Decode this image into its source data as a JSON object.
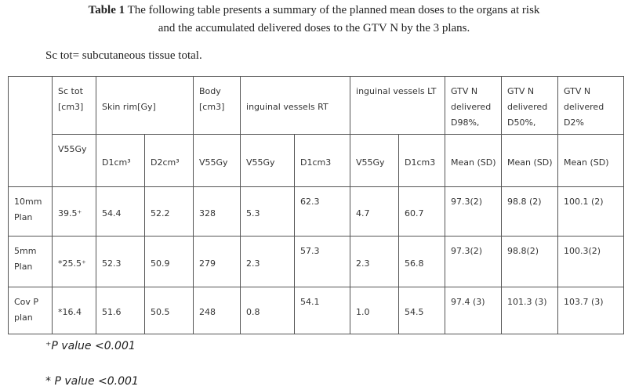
{
  "title": {
    "label": "Table 1",
    "lines": [
      "The following table presents a summary  of the planned mean doses to the organs at risk",
      "and the accumulated delivered doses to the GTV N by the 3 plans."
    ]
  },
  "note": "Sc tot= subcutaneous tissue total.",
  "table": {
    "group_headers": [
      "Sc tot [cm3]",
      "Skin rim[Gy]",
      "Body [cm3]",
      "inguinal vessels RT",
      "inguinal vessels LT",
      "GTV N delivered D98%,",
      "GTV N delivered D50%,",
      "GTV N delivered D2%"
    ],
    "sub_headers": [
      "V55Gy",
      "D1cm³",
      "D2cm³",
      "V55Gy",
      "V55Gy",
      "D1cm3",
      "V55Gy",
      "D1cm3",
      "Mean (SD)",
      "Mean (SD)",
      "Mean (SD)"
    ],
    "rows": [
      [
        "10mm Plan",
        "39.5⁺",
        "54.4",
        "52.2",
        "328",
        "5.3",
        "62.3",
        "4.7",
        "60.7",
        "97.3(2)",
        "98.8 (2)",
        "100.1 (2)"
      ],
      [
        "5mm Plan",
        "*25.5⁺",
        "52.3",
        "50.9",
        "279",
        "2.3",
        "57.3",
        "2.3",
        "56.8",
        "97.3(2)",
        "98.8(2)",
        "100.3(2)"
      ],
      [
        "Cov P plan",
        "*16.4",
        "51.6",
        "50.5",
        "248",
        "0.8",
        "54.1",
        "1.0",
        "54.5",
        "97.4 (3)",
        "101.3 (3)",
        "103.7 (3)"
      ]
    ]
  },
  "footnotes": [
    "⁺P value <0.001",
    "* P value <0.001"
  ]
}
